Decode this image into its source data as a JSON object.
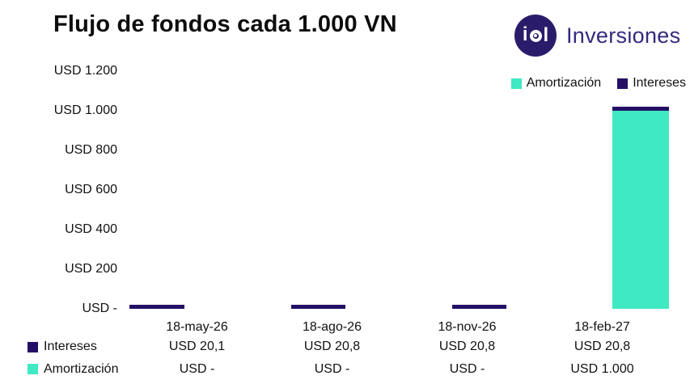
{
  "header": {
    "title": "Flujo de fondos cada 1.000 VN",
    "logo": {
      "monogram_left": "i",
      "monogram_right": "l",
      "brand": "Inversiones"
    }
  },
  "colors": {
    "navy": "#241066",
    "teal": "#3FE9C3",
    "logo_circle": "#2B1C6B",
    "brand_text": "#332A7E"
  },
  "chart_data": {
    "type": "bar",
    "stacked": true,
    "title": "Flujo de fondos cada 1.000 VN",
    "categories": [
      "18-may-26",
      "18-ago-26",
      "18-nov-26",
      "18-feb-27"
    ],
    "series": [
      {
        "name": "Amortización",
        "color": "#3FE9C3",
        "values": [
          0,
          0,
          0,
          1000
        ],
        "labels": [
          "USD -",
          "USD -",
          "USD -",
          "USD 1.000"
        ]
      },
      {
        "name": "Intereses",
        "color": "#241066",
        "values": [
          20.1,
          20.8,
          20.8,
          20.8
        ],
        "labels": [
          "USD 20,1",
          "USD 20,8",
          "USD 20,8",
          "USD 20,8"
        ]
      }
    ],
    "y_ticks": [
      "USD 1.200",
      "USD 1.000",
      "USD 800",
      "USD 600",
      "USD 400",
      "USD 200",
      "USD -"
    ],
    "ylim": [
      0,
      1200
    ],
    "y_tick_step": 200,
    "grid": false,
    "legend_position": "top-right",
    "data_table_shown": true
  }
}
